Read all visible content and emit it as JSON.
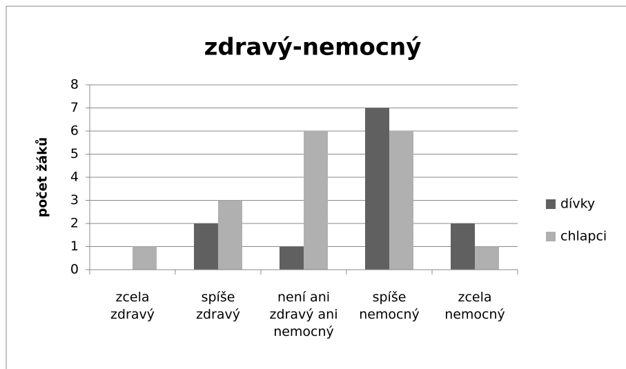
{
  "chart_data": {
    "type": "bar",
    "title": "zdravý-nemocný",
    "y_label": "počet žáků",
    "categories": [
      "zcela zdravý",
      "spíše zdravý",
      "není ani zdravý ani nemocný",
      "spíše nemocný",
      "zcela nemocný"
    ],
    "series": [
      {
        "name": "dívky",
        "color": "#606060",
        "values": [
          0,
          2,
          1,
          7,
          2
        ]
      },
      {
        "name": "chlapci",
        "color": "#b0b0b0",
        "values": [
          1,
          3,
          6,
          6,
          1
        ]
      }
    ],
    "ylim": [
      0,
      8
    ],
    "yticks": [
      0,
      1,
      2,
      3,
      4,
      5,
      6,
      7,
      8
    ],
    "grid": true,
    "legend": "right"
  }
}
